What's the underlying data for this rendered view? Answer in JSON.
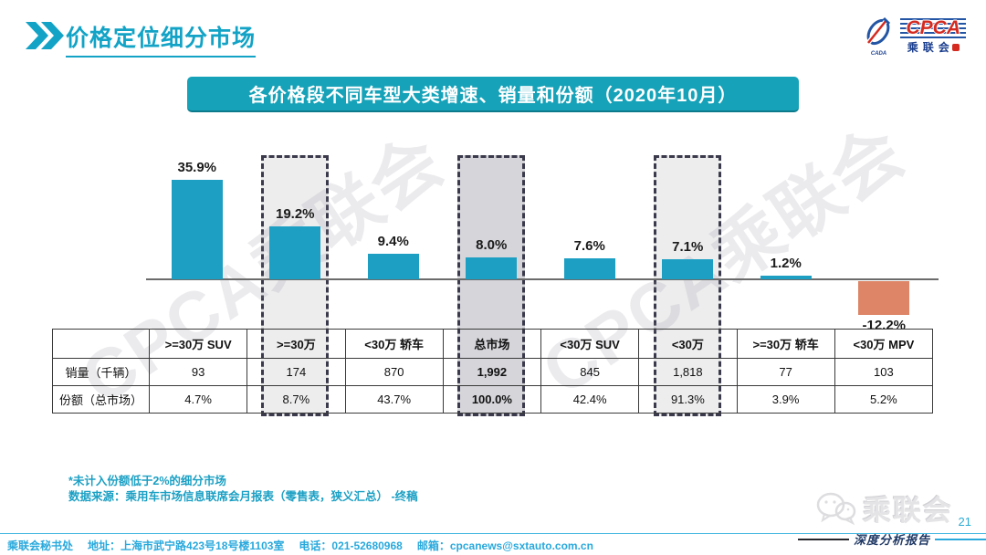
{
  "header": {
    "title": "价格定位细分市场",
    "logo": {
      "cpca": "CPCA",
      "cn": "乘联会",
      "icon_sub": "CADA"
    }
  },
  "banner": {
    "title": "各价格段不同车型大类增速、销量和份额（2020年10月）"
  },
  "watermark": {
    "text": "CPCA乘联会"
  },
  "chart_data": {
    "type": "bar",
    "title": "各价格段不同车型大类增速、销量和份额（2020年10月）",
    "categories": [
      ">=30万 SUV",
      ">=30万",
      "<30万 轿车",
      "总市场",
      "<30万 SUV",
      "<30万",
      ">=30万 轿车",
      "<30万 MPV"
    ],
    "values": [
      35.9,
      19.2,
      9.4,
      8.0,
      7.6,
      7.1,
      1.2,
      -12.2
    ],
    "value_labels": [
      "35.9%",
      "19.2%",
      "9.4%",
      "8.0%",
      "7.6%",
      "7.1%",
      "1.2%",
      "-12.2%"
    ],
    "unit": "%",
    "bar_color": "#1C9FC3",
    "negative_bar_color": "#DD8566",
    "highlight_light_columns": [
      1,
      5
    ],
    "highlight_dark_columns": [
      3
    ],
    "grid": false,
    "legend": false,
    "table": {
      "row_headers": [
        "销量（千辆）",
        "份额（总市场）"
      ],
      "rows": [
        [
          "93",
          "174",
          "870",
          "1,992",
          "845",
          "1,818",
          "77",
          "103"
        ],
        [
          "4.7%",
          "8.7%",
          "43.7%",
          "100.0%",
          "42.4%",
          "91.3%",
          "3.9%",
          "5.2%"
        ]
      ],
      "bold_column_index": 3
    }
  },
  "notes": {
    "line1": "*未计入份额低于2%的细分市场",
    "line2": "数据来源：乘用车市场信息联席会月报表（零售表，狭义汇总）  -终稿"
  },
  "footer": {
    "org": "乘联会秘书处",
    "address": "地址：上海市武宁路423号18号楼1103室",
    "phone": "电话：021-52680968",
    "email": "邮箱：cpcanews@sxtauto.com.cn"
  },
  "bottom_right": {
    "wechat_name": "乘联会",
    "page": "21",
    "report_label": "深度分析报告"
  }
}
